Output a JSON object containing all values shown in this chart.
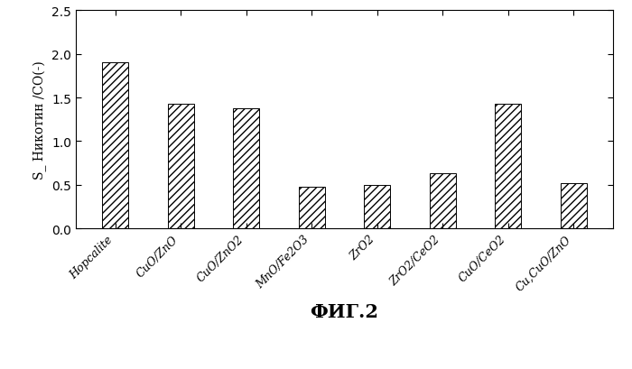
{
  "categories": [
    "Hopcalite",
    "CuO/ZnO",
    "CuO/ZnO2",
    "MnO/Fe2O3",
    "ZrO2",
    "ZrO2/CeO2",
    "CuO/CeO2",
    "Cu,CuO/ZnO"
  ],
  "values": [
    1.9,
    1.43,
    1.38,
    0.48,
    0.5,
    0.63,
    1.43,
    0.52
  ],
  "ylabel": "S_ Никотин /CO(-)",
  "xlabel": "ФИГ.2",
  "ylim": [
    0,
    2.5
  ],
  "yticks": [
    0,
    0.5,
    1.0,
    1.5,
    2.0,
    2.5
  ],
  "bar_color": "#ffffff",
  "hatch_pattern": "////",
  "edge_color": "#000000",
  "background_color": "#ffffff",
  "figsize": [
    7.0,
    4.1
  ],
  "dpi": 100
}
